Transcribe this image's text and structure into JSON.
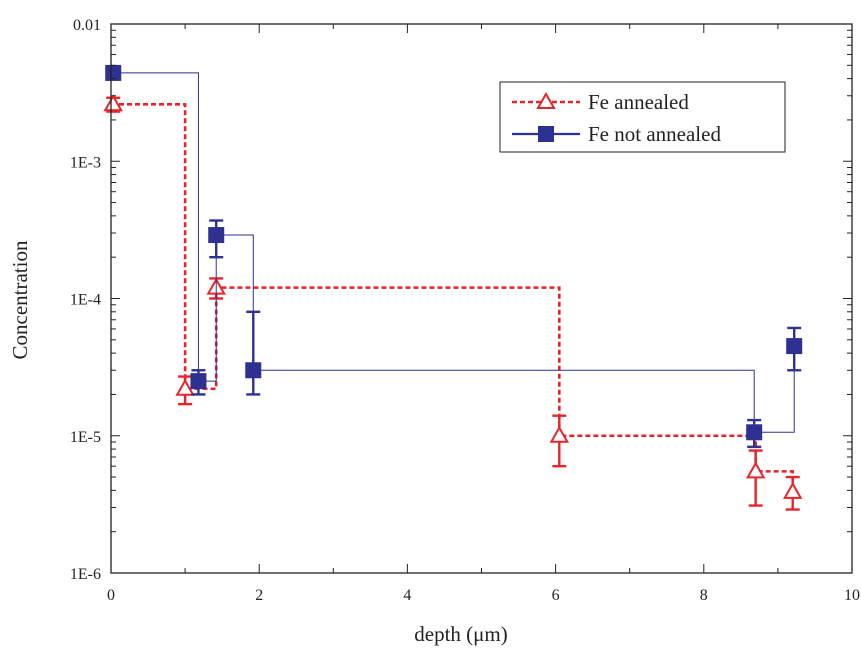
{
  "chart_data": {
    "type": "line",
    "title": "",
    "xlabel": "depth (μm)",
    "ylabel": "Concentration",
    "xlim": [
      0,
      10
    ],
    "ylim": [
      1e-06,
      0.01
    ],
    "yscale": "log",
    "x_ticks": [
      0,
      2,
      4,
      6,
      8,
      10
    ],
    "x_tick_labels": [
      "0",
      "2",
      "4",
      "6",
      "8",
      "10"
    ],
    "y_ticks": [
      1e-06,
      1e-05,
      0.0001,
      0.001,
      0.01
    ],
    "y_tick_labels": [
      "1E-6",
      "1E-5",
      "1E-4",
      "1E-3",
      "0.01"
    ],
    "grid": false,
    "legend_position": "top-right",
    "series": [
      {
        "name": "Fe annealed",
        "color": "#e8242b",
        "marker": "open-triangle",
        "line_style": "dashed",
        "step": true,
        "points": [
          {
            "x": 0.03,
            "y": 0.0026,
            "err_low": 0.0023,
            "err_high": 0.0029
          },
          {
            "x": 1.0,
            "y": 2.2e-05,
            "err_low": 1.7e-05,
            "err_high": 2.7e-05
          },
          {
            "x": 1.42,
            "y": 0.00012,
            "err_low": 0.0001,
            "err_high": 0.00014
          },
          {
            "x": 6.05,
            "y": 1e-05,
            "err_low": 6e-06,
            "err_high": 1.4e-05
          },
          {
            "x": 8.7,
            "y": 5.5e-06,
            "err_low": 3.1e-06,
            "err_high": 7.8e-06
          },
          {
            "x": 9.2,
            "y": 3.9e-06,
            "err_low": 2.9e-06,
            "err_high": 5e-06
          }
        ]
      },
      {
        "name": "Fe not annealed",
        "color": "#2e3192",
        "marker": "filled-square",
        "line_style": "solid",
        "step": true,
        "points": [
          {
            "x": 0.03,
            "y": 0.0044,
            "err_low": 0.004,
            "err_high": 0.0048
          },
          {
            "x": 1.18,
            "y": 2.5e-05,
            "err_low": 2e-05,
            "err_high": 3e-05
          },
          {
            "x": 1.42,
            "y": 0.00029,
            "err_low": 0.0002,
            "err_high": 0.00037
          },
          {
            "x": 1.92,
            "y": 3e-05,
            "err_low": 2e-05,
            "err_high": 8e-05
          },
          {
            "x": 8.68,
            "y": 1.06e-05,
            "err_low": 8.3e-06,
            "err_high": 1.3e-05
          },
          {
            "x": 9.22,
            "y": 4.5e-05,
            "err_low": 3e-05,
            "err_high": 6.1e-05
          }
        ]
      }
    ]
  }
}
